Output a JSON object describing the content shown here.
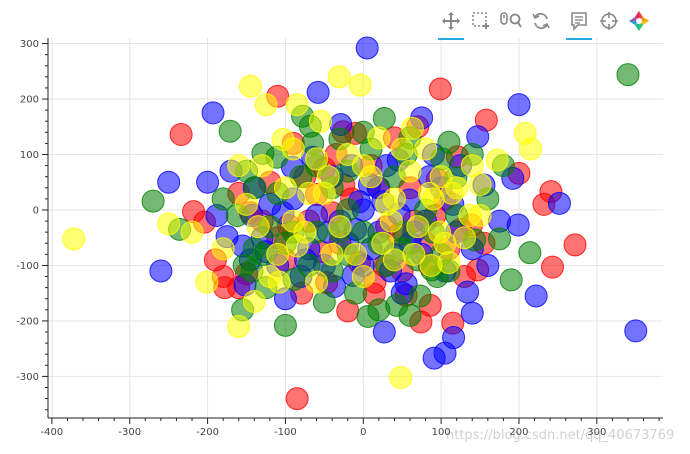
{
  "toolbar": {
    "tools": [
      {
        "name": "pan-icon",
        "active": true
      },
      {
        "name": "box-zoom-icon",
        "active": false
      },
      {
        "name": "wheel-zoom-icon",
        "active": false
      },
      {
        "name": "reset-icon",
        "active": false
      },
      {
        "name": "hover-icon",
        "active": true
      },
      {
        "name": "crosshair-icon",
        "active": false
      },
      {
        "name": "bokeh-logo",
        "active": false
      }
    ],
    "accent": "#26aae1"
  },
  "watermark": "https://blog.csdn.net/qq_40673769",
  "chart_data": {
    "type": "scatter",
    "xlim": [
      -405,
      385
    ],
    "ylim": [
      -375,
      310
    ],
    "x_ticks": [
      -400,
      -300,
      -200,
      -100,
      0,
      100,
      200,
      300
    ],
    "y_ticks": [
      -300,
      -200,
      -100,
      0,
      100,
      200,
      300
    ],
    "grid": true,
    "marker_alpha": 0.55,
    "series": [
      {
        "color": "#ff0000",
        "points": [
          [
            -234,
            136
          ],
          [
            -218,
            -3
          ],
          [
            -204,
            -22
          ],
          [
            -178,
            -140
          ],
          [
            -160,
            -140
          ],
          [
            -150,
            -115
          ],
          [
            -110,
            205
          ],
          [
            -96,
            -28
          ],
          [
            -79,
            -150
          ],
          [
            -47,
            -131
          ],
          [
            -26,
            141
          ],
          [
            -20,
            -182
          ],
          [
            -10,
            138
          ],
          [
            14,
            -152
          ],
          [
            27,
            -101
          ],
          [
            55,
            -154
          ],
          [
            74,
            -202
          ],
          [
            86,
            -172
          ],
          [
            92,
            -10
          ],
          [
            99,
            218
          ],
          [
            115,
            -204
          ],
          [
            121,
            96
          ],
          [
            139,
            -27
          ],
          [
            147,
            -108
          ],
          [
            158,
            162
          ],
          [
            200,
            66
          ],
          [
            232,
            10
          ],
          [
            241,
            33
          ],
          [
            243,
            -103
          ],
          [
            272,
            -63
          ],
          [
            -85,
            -340
          ],
          [
            -60,
            28
          ],
          [
            -130,
            -20
          ],
          [
            -50,
            75
          ],
          [
            10,
            80
          ],
          [
            60,
            40
          ],
          [
            -30,
            -60
          ],
          [
            30,
            -30
          ],
          [
            -100,
            -90
          ],
          [
            80,
            -60
          ],
          [
            -70,
            -20
          ],
          [
            110,
            -70
          ],
          [
            -120,
            50
          ],
          [
            40,
            130
          ],
          [
            -5,
            -95
          ],
          [
            70,
            150
          ],
          [
            -145,
            -5
          ],
          [
            95,
            55
          ],
          [
            -40,
            -5
          ],
          [
            130,
            -120
          ],
          [
            -15,
            20
          ],
          [
            50,
            -110
          ],
          [
            -90,
            120
          ],
          [
            -190,
            -90
          ],
          [
            20,
            40
          ],
          [
            65,
            -20
          ],
          [
            -25,
            45
          ],
          [
            105,
            20
          ],
          [
            -55,
            -75
          ],
          [
            125,
            -35
          ],
          [
            -180,
            -120
          ],
          [
            155,
            -60
          ],
          [
            45,
            -45
          ],
          [
            -75,
            60
          ],
          [
            -110,
            -50
          ],
          [
            15,
            -130
          ],
          [
            85,
            -100
          ],
          [
            -35,
            100
          ],
          [
            -160,
            30
          ]
        ]
      },
      {
        "color": "#0000ff",
        "points": [
          [
            5,
            292
          ],
          [
            -58,
            212
          ],
          [
            -29,
            154
          ],
          [
            -193,
            175
          ],
          [
            -188,
            -10
          ],
          [
            -175,
            -48
          ],
          [
            -155,
            -65
          ],
          [
            -152,
            -135
          ],
          [
            -145,
            -90
          ],
          [
            -143,
            -10
          ],
          [
            -130,
            -50
          ],
          [
            -103,
            -5
          ],
          [
            -91,
            77
          ],
          [
            -74,
            -90
          ],
          [
            -37,
            -138
          ],
          [
            -13,
            -118
          ],
          [
            -10,
            -35
          ],
          [
            8,
            46
          ],
          [
            19,
            40
          ],
          [
            27,
            -220
          ],
          [
            46,
            -7
          ],
          [
            55,
            -133
          ],
          [
            59,
            18
          ],
          [
            75,
            166
          ],
          [
            91,
            -267
          ],
          [
            105,
            -258
          ],
          [
            116,
            -230
          ],
          [
            134,
            -148
          ],
          [
            140,
            -186
          ],
          [
            147,
            132
          ],
          [
            155,
            45
          ],
          [
            192,
            57
          ],
          [
            199,
            -27
          ],
          [
            222,
            -155
          ],
          [
            252,
            12
          ],
          [
            350,
            -218
          ],
          [
            200,
            190
          ],
          [
            -260,
            -110
          ],
          [
            -120,
            10
          ],
          [
            -80,
            -120
          ],
          [
            -60,
            -10
          ],
          [
            -40,
            60
          ],
          [
            -20,
            -60
          ],
          [
            0,
            0
          ],
          [
            20,
            -40
          ],
          [
            40,
            -80
          ],
          [
            60,
            -60
          ],
          [
            80,
            -20
          ],
          [
            100,
            40
          ],
          [
            120,
            -40
          ],
          [
            140,
            -70
          ],
          [
            160,
            -100
          ],
          [
            -140,
            40
          ],
          [
            -100,
            -160
          ],
          [
            -50,
            -100
          ],
          [
            0,
            -100
          ],
          [
            50,
            -150
          ],
          [
            -30,
            -20
          ],
          [
            30,
            80
          ],
          [
            90,
            100
          ],
          [
            -70,
            -70
          ],
          [
            10,
            -70
          ],
          [
            -110,
            -100
          ],
          [
            -200,
            50
          ],
          [
            -250,
            50
          ],
          [
            -15,
            80
          ],
          [
            45,
            90
          ],
          [
            75,
            -80
          ],
          [
            105,
            -110
          ],
          [
            125,
            80
          ],
          [
            -170,
            70
          ],
          [
            -90,
            20
          ],
          [
            -45,
            -40
          ],
          [
            25,
            15
          ],
          [
            65,
            -40
          ],
          [
            -125,
            -75
          ],
          [
            85,
            60
          ],
          [
            -5,
            15
          ],
          [
            35,
            -110
          ],
          [
            -65,
            95
          ],
          [
            115,
            10
          ],
          [
            175,
            -20
          ]
        ]
      },
      {
        "color": "#008000",
        "points": [
          [
            -270,
            16
          ],
          [
            -236,
            -35
          ],
          [
            -171,
            142
          ],
          [
            -162,
            -10
          ],
          [
            -155,
            -180
          ],
          [
            -153,
            -100
          ],
          [
            -143,
            -110
          ],
          [
            -139,
            40
          ],
          [
            -129,
            102
          ],
          [
            -128,
            -80
          ],
          [
            -111,
            95
          ],
          [
            -100,
            -208
          ],
          [
            -89,
            -125
          ],
          [
            -78,
            169
          ],
          [
            -68,
            151
          ],
          [
            -65,
            120
          ],
          [
            -50,
            -166
          ],
          [
            -30,
            128
          ],
          [
            -19,
            -81
          ],
          [
            6,
            -192
          ],
          [
            27,
            165
          ],
          [
            43,
            -172
          ],
          [
            52,
            -40
          ],
          [
            73,
            -155
          ],
          [
            88,
            -108
          ],
          [
            101,
            92
          ],
          [
            110,
            122
          ],
          [
            119,
            58
          ],
          [
            143,
            -54
          ],
          [
            175,
            -52
          ],
          [
            190,
            -126
          ],
          [
            214,
            -77
          ],
          [
            340,
            244
          ],
          [
            -180,
            20
          ],
          [
            -60,
            -40
          ],
          [
            -40,
            -110
          ],
          [
            0,
            -40
          ],
          [
            20,
            -180
          ],
          [
            60,
            -190
          ],
          [
            100,
            -80
          ],
          [
            -20,
            0
          ],
          [
            40,
            60
          ],
          [
            80,
            0
          ],
          [
            -100,
            -60
          ],
          [
            -120,
            -30
          ],
          [
            -80,
            60
          ],
          [
            -40,
            40
          ],
          [
            0,
            140
          ],
          [
            20,
            -60
          ],
          [
            60,
            130
          ],
          [
            120,
            -10
          ],
          [
            160,
            20
          ],
          [
            180,
            80
          ],
          [
            -140,
            -70
          ],
          [
            -90,
            -40
          ],
          [
            -10,
            -150
          ],
          [
            50,
            -70
          ],
          [
            70,
            -90
          ],
          [
            -30,
            -40
          ],
          [
            -110,
            30
          ],
          [
            140,
            100
          ],
          [
            90,
            -40
          ],
          [
            -60,
            80
          ],
          [
            30,
            -100
          ],
          [
            -150,
            70
          ],
          [
            10,
            110
          ],
          [
            -70,
            -100
          ],
          [
            110,
            -110
          ],
          [
            -20,
            70
          ],
          [
            55,
            100
          ],
          [
            -125,
            -140
          ],
          [
            95,
            -120
          ]
        ]
      },
      {
        "color": "#ffff00",
        "points": [
          [
            -372,
            -52
          ],
          [
            -250,
            -25
          ],
          [
            -201,
            -130
          ],
          [
            -160,
            80
          ],
          [
            -140,
            -165
          ],
          [
            -145,
            223
          ],
          [
            -125,
            190
          ],
          [
            -108,
            -130
          ],
          [
            -103,
            127
          ],
          [
            -85,
            190
          ],
          [
            -85,
            -65
          ],
          [
            -60,
            92
          ],
          [
            -31,
            240
          ],
          [
            -4,
            225
          ],
          [
            36,
            -20
          ],
          [
            48,
            -302
          ],
          [
            63,
            147
          ],
          [
            87,
            -100
          ],
          [
            98,
            -40
          ],
          [
            114,
            30
          ],
          [
            137,
            -10
          ],
          [
            150,
            46
          ],
          [
            172,
            90
          ],
          [
            208,
            138
          ],
          [
            -160,
            -210
          ],
          [
            -180,
            -70
          ],
          [
            -90,
            110
          ],
          [
            -40,
            -80
          ],
          [
            0,
            -120
          ],
          [
            20,
            130
          ],
          [
            40,
            -90
          ],
          [
            70,
            -30
          ],
          [
            110,
            -95
          ],
          [
            130,
            -50
          ],
          [
            -120,
            -120
          ],
          [
            -60,
            -130
          ],
          [
            -20,
            100
          ],
          [
            60,
            70
          ],
          [
            100,
            60
          ],
          [
            -150,
            10
          ],
          [
            -90,
            -20
          ],
          [
            -50,
            30
          ],
          [
            10,
            60
          ],
          [
            50,
            110
          ],
          [
            90,
            20
          ],
          [
            150,
            -10
          ],
          [
            -130,
            80
          ],
          [
            -70,
            30
          ],
          [
            30,
            10
          ],
          [
            80,
            110
          ],
          [
            120,
            40
          ],
          [
            -100,
            40
          ],
          [
            -30,
            -30
          ],
          [
            0,
            80
          ],
          [
            40,
            20
          ],
          [
            -10,
            -80
          ],
          [
            65,
            -80
          ],
          [
            -110,
            -80
          ],
          [
            140,
            80
          ],
          [
            -75,
            -40
          ],
          [
            105,
            -60
          ],
          [
            -45,
            60
          ],
          [
            25,
            -60
          ],
          [
            -135,
            -30
          ],
          [
            85,
            30
          ],
          [
            215,
            110
          ],
          [
            -220,
            -40
          ],
          [
            -55,
            160
          ]
        ]
      }
    ]
  }
}
